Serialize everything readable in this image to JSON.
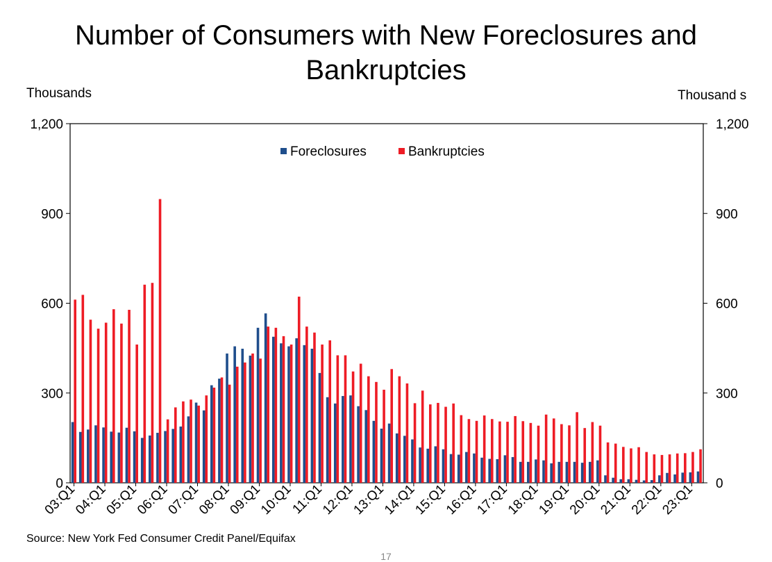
{
  "page": {
    "source": "Source: New York Fed Consumer Credit Panel/Equifax",
    "page_number": "17"
  },
  "chart_data": {
    "type": "bar",
    "title": "Number of Consumers with New Foreclosures and Bankruptcies",
    "ylabel_left": "Thousands",
    "ylabel_right": "Thousand s",
    "ylim": [
      0,
      1200
    ],
    "yticks": [
      0,
      300,
      600,
      900,
      1200
    ],
    "ytick_labels": [
      "0",
      "300",
      "600",
      "900",
      "1,200"
    ],
    "xtick_labels": [
      "03:Q1",
      "04:Q1",
      "05:Q1",
      "06:Q1",
      "07:Q1",
      "08:Q1",
      "09:Q1",
      "10:Q1",
      "11:Q1",
      "12:Q1",
      "13:Q1",
      "14:Q1",
      "15:Q1",
      "16:Q1",
      "17:Q1",
      "18:Q1",
      "19:Q1",
      "20:Q1",
      "21:Q1",
      "22:Q1",
      "23:Q1"
    ],
    "legend_position": "top-center",
    "categories": [
      "03:Q1",
      "03:Q2",
      "03:Q3",
      "03:Q4",
      "04:Q1",
      "04:Q2",
      "04:Q3",
      "04:Q4",
      "05:Q1",
      "05:Q2",
      "05:Q3",
      "05:Q4",
      "06:Q1",
      "06:Q2",
      "06:Q3",
      "06:Q4",
      "07:Q1",
      "07:Q2",
      "07:Q3",
      "07:Q4",
      "08:Q1",
      "08:Q2",
      "08:Q3",
      "08:Q4",
      "09:Q1",
      "09:Q2",
      "09:Q3",
      "09:Q4",
      "10:Q1",
      "10:Q2",
      "10:Q3",
      "10:Q4",
      "11:Q1",
      "11:Q2",
      "11:Q3",
      "11:Q4",
      "12:Q1",
      "12:Q2",
      "12:Q3",
      "12:Q4",
      "13:Q1",
      "13:Q2",
      "13:Q3",
      "13:Q4",
      "14:Q1",
      "14:Q2",
      "14:Q3",
      "14:Q4",
      "15:Q1",
      "15:Q2",
      "15:Q3",
      "15:Q4",
      "16:Q1",
      "16:Q2",
      "16:Q3",
      "16:Q4",
      "17:Q1",
      "17:Q2",
      "17:Q3",
      "17:Q4",
      "18:Q1",
      "18:Q2",
      "18:Q3",
      "18:Q4",
      "19:Q1",
      "19:Q2",
      "19:Q3",
      "19:Q4",
      "20:Q1",
      "20:Q2",
      "20:Q3",
      "20:Q4",
      "21:Q1",
      "21:Q2",
      "21:Q3",
      "21:Q4",
      "22:Q1",
      "22:Q2",
      "22:Q3",
      "22:Q4",
      "23:Q1",
      "23:Q2"
    ],
    "series": [
      {
        "name": "Foreclosures",
        "color": "#1f4e8c",
        "values": [
          203,
          170,
          178,
          192,
          185,
          171,
          168,
          184,
          172,
          150,
          158,
          167,
          173,
          180,
          188,
          222,
          268,
          242,
          326,
          348,
          432,
          456,
          448,
          425,
          518,
          566,
          488,
          466,
          456,
          483,
          460,
          448,
          367,
          286,
          265,
          290,
          292,
          256,
          243,
          207,
          181,
          198,
          165,
          157,
          145,
          118,
          114,
          122,
          112,
          96,
          94,
          103,
          98,
          84,
          80,
          79,
          92,
          86,
          70,
          70,
          78,
          75,
          65,
          70,
          70,
          70,
          67,
          70,
          75,
          25,
          17,
          12,
          12,
          10,
          8,
          9,
          25,
          33,
          28,
          34,
          35,
          38
        ]
      },
      {
        "name": "Bankruptcies",
        "color": "#ee1c25",
        "values": [
          612,
          628,
          545,
          515,
          535,
          580,
          532,
          578,
          462,
          662,
          668,
          948,
          212,
          252,
          272,
          278,
          258,
          292,
          318,
          352,
          328,
          388,
          402,
          432,
          415,
          522,
          518,
          490,
          462,
          622,
          522,
          502,
          462,
          476,
          426,
          426,
          372,
          398,
          356,
          337,
          311,
          380,
          356,
          332,
          266,
          308,
          262,
          267,
          254,
          265,
          226,
          213,
          207,
          225,
          213,
          205,
          204,
          223,
          206,
          200,
          191,
          228,
          215,
          196,
          192,
          236,
          183,
          203,
          191,
          135,
          131,
          120,
          115,
          119,
          103,
          95,
          93,
          95,
          98,
          99,
          103,
          112
        ]
      }
    ]
  }
}
